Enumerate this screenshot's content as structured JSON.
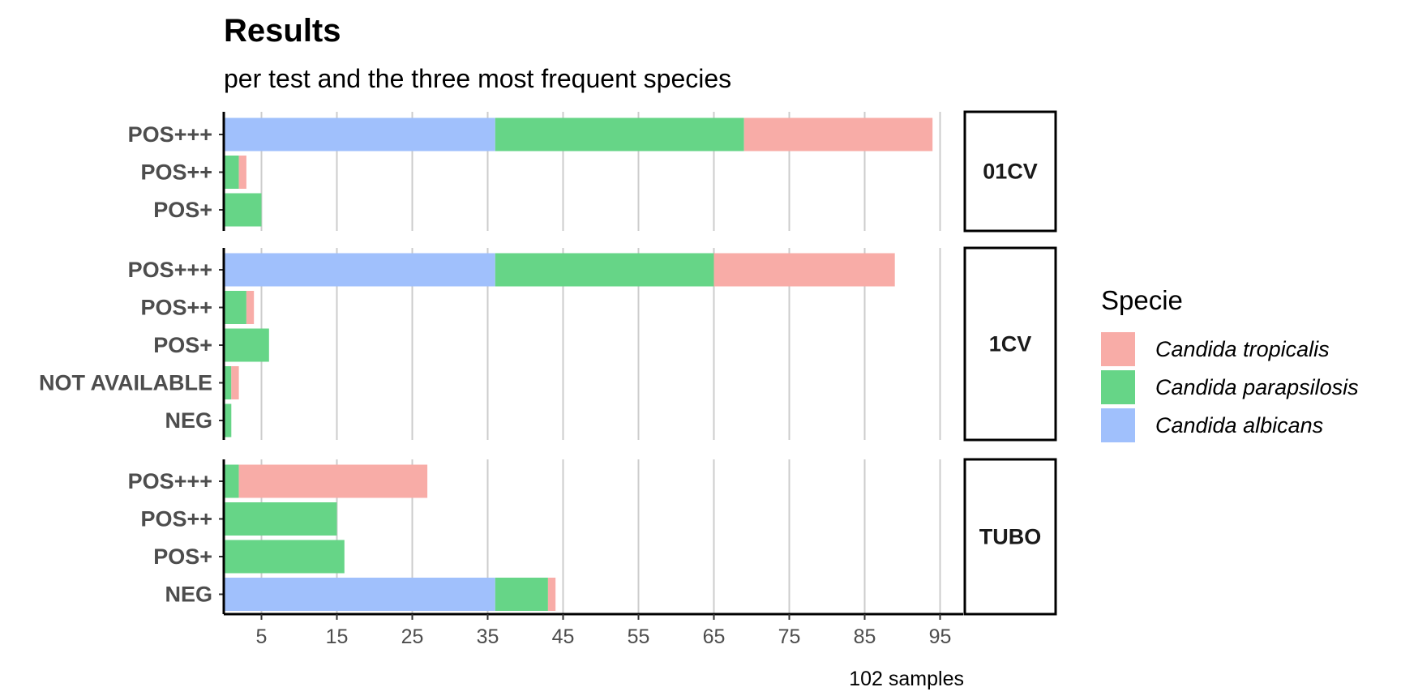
{
  "chart_data": {
    "type": "bar",
    "orientation": "horizontal",
    "stacked": true,
    "title": "Results",
    "subtitle": "per test and the three most frequent species",
    "caption": "102 samples",
    "xlabel": "",
    "ylabel": "",
    "xlim": [
      0,
      98
    ],
    "x_ticks": [
      5,
      15,
      25,
      35,
      45,
      55,
      65,
      75,
      85,
      95
    ],
    "grid": "vertical",
    "legend": {
      "title": "Specie",
      "position": "right",
      "entries": [
        "Candida tropicalis",
        "Candida parapsilosis",
        "Candida albicans"
      ]
    },
    "series_colors": {
      "Candida albicans": "#a0c0fc",
      "Candida parapsilosis": "#66d587",
      "Candida tropicalis": "#f8aca7"
    },
    "panels": [
      {
        "name": "01CV",
        "categories": [
          "POS+++",
          "POS++",
          "POS+"
        ],
        "series": [
          {
            "name": "Candida albicans",
            "values": [
              36,
              0,
              0
            ]
          },
          {
            "name": "Candida parapsilosis",
            "values": [
              33,
              2,
              5
            ]
          },
          {
            "name": "Candida tropicalis",
            "values": [
              25,
              1,
              0
            ]
          }
        ]
      },
      {
        "name": "1CV",
        "categories": [
          "POS+++",
          "POS++",
          "POS+",
          "NOT AVAILABLE",
          "NEG"
        ],
        "series": [
          {
            "name": "Candida albicans",
            "values": [
              36,
              0,
              0,
              0,
              0
            ]
          },
          {
            "name": "Candida parapsilosis",
            "values": [
              29,
              3,
              6,
              1,
              1
            ]
          },
          {
            "name": "Candida tropicalis",
            "values": [
              24,
              1,
              0,
              1,
              0
            ]
          }
        ]
      },
      {
        "name": "TUBO",
        "categories": [
          "POS+++",
          "POS++",
          "POS+",
          "NEG"
        ],
        "series": [
          {
            "name": "Candida albicans",
            "values": [
              0,
              0,
              0,
              36
            ]
          },
          {
            "name": "Candida parapsilosis",
            "values": [
              2,
              15,
              16,
              7
            ]
          },
          {
            "name": "Candida tropicalis",
            "values": [
              25,
              0,
              0,
              1
            ]
          }
        ]
      }
    ]
  }
}
